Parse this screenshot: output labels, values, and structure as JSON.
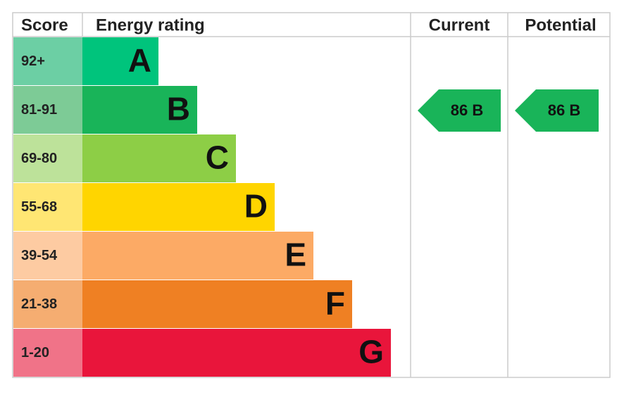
{
  "header": {
    "score": "Score",
    "energy_rating": "Energy rating",
    "current": "Current",
    "potential": "Potential"
  },
  "bands": [
    {
      "score": "92+",
      "letter": "A",
      "color": "#00c47c",
      "score_color": "#6ccfa4"
    },
    {
      "score": "81-91",
      "letter": "B",
      "color": "#19b459",
      "score_color": "#7dcb96"
    },
    {
      "score": "69-80",
      "letter": "C",
      "color": "#8dce46",
      "score_color": "#bde29a"
    },
    {
      "score": "55-68",
      "letter": "D",
      "color": "#ffd500",
      "score_color": "#ffe673"
    },
    {
      "score": "39-54",
      "letter": "E",
      "color": "#fcaa65",
      "score_color": "#fdcba2"
    },
    {
      "score": "21-38",
      "letter": "F",
      "color": "#ef8023",
      "score_color": "#f5ad71"
    },
    {
      "score": "1-20",
      "letter": "G",
      "color": "#e9153b",
      "score_color": "#f07388"
    }
  ],
  "current": {
    "label": "86 B",
    "color": "#19b459"
  },
  "potential": {
    "label": "86 B",
    "color": "#19b459"
  }
}
